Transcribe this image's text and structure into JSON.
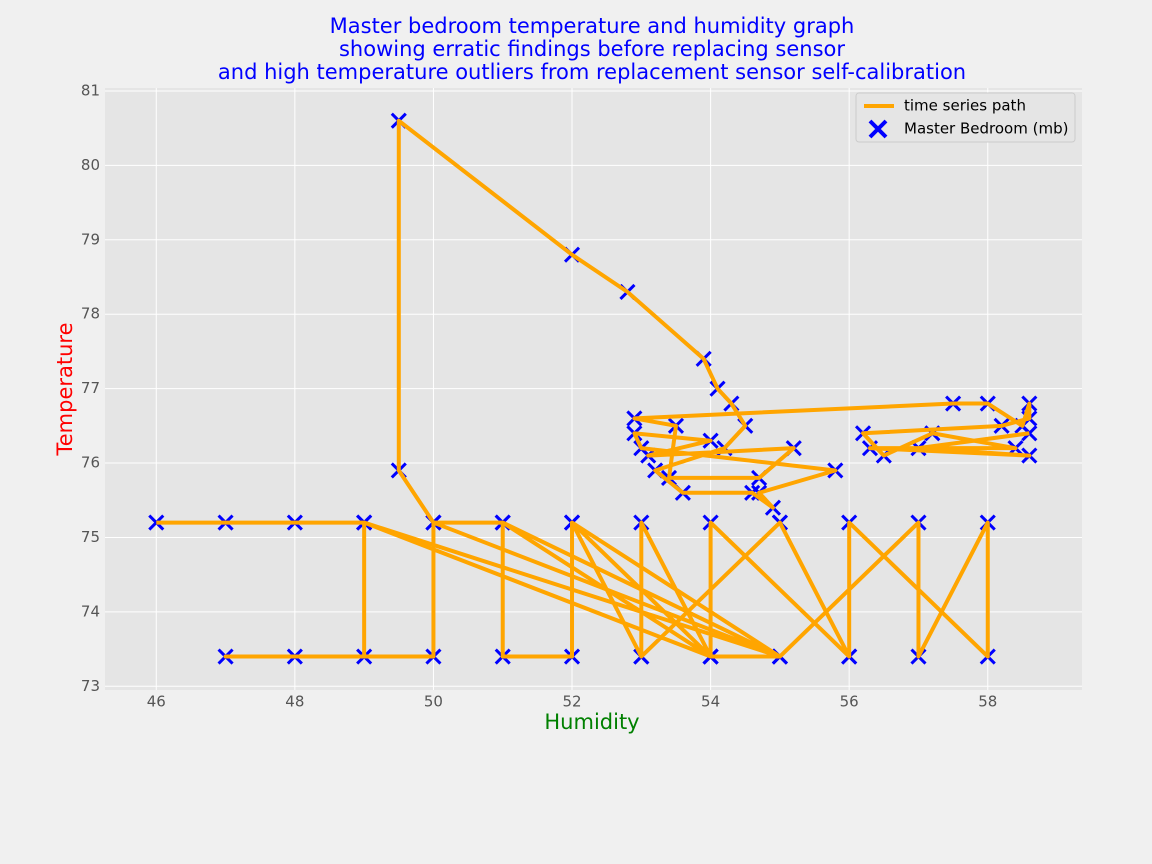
{
  "chart_data": {
    "type": "scatter",
    "title": [
      "Master bedroom temperature and humidity graph",
      "showing erratic findings before replacing sensor",
      "and high temperature outliers from replacement sensor self-calibration"
    ],
    "x_label": "Humidity",
    "y_label": "Temperature",
    "xlim": [
      45.26,
      59.36
    ],
    "xticks": [
      46,
      48,
      50,
      52,
      54,
      56,
      58
    ],
    "ylim": [
      72.95,
      81.04
    ],
    "yticks": [
      73,
      74,
      75,
      76,
      77,
      78,
      79,
      80,
      81
    ],
    "grid": true,
    "legend": "upper right",
    "series": [
      {
        "name": "time series path",
        "type": "line",
        "color": "#ffa500",
        "x": [
          46,
          47,
          48,
          49,
          49,
          47,
          48,
          50,
          50,
          51,
          51,
          52,
          52,
          54,
          53,
          53,
          55,
          56,
          54,
          54,
          55,
          57,
          57,
          58,
          58,
          56,
          56,
          55,
          53,
          52,
          55,
          51,
          54,
          49,
          55,
          50,
          49.5,
          49.5,
          52,
          52.8,
          53.9,
          54.1,
          54.3,
          54.5,
          54.2,
          53.2,
          53.6,
          54.6,
          54.9,
          54.7,
          55.8,
          53.0,
          52.9,
          54.0,
          53.1,
          55.2,
          54.7,
          53.4,
          53.5,
          52.9,
          57.5,
          58,
          58.5,
          58.6,
          58.6,
          58.2,
          56.2,
          56.5,
          57.2,
          58.4,
          56.3,
          58.6,
          57.0,
          58.6
        ],
        "values": [
          75.2,
          75.2,
          75.2,
          75.2,
          73.4,
          73.4,
          73.4,
          73.4,
          75.2,
          75.2,
          73.4,
          73.4,
          75.2,
          73.4,
          75.2,
          73.4,
          75.2,
          73.4,
          75.2,
          73.4,
          73.4,
          75.2,
          73.4,
          75.2,
          73.4,
          75.2,
          73.4,
          75.2,
          73.4,
          75.2,
          73.4,
          75.2,
          73.4,
          75.2,
          73.4,
          75.2,
          75.9,
          80.6,
          78.8,
          78.3,
          77.4,
          77.0,
          76.8,
          76.5,
          76.2,
          75.9,
          75.6,
          75.6,
          75.4,
          75.6,
          75.9,
          76.2,
          76.4,
          76.3,
          76.1,
          76.2,
          75.8,
          75.8,
          76.5,
          76.6,
          76.8,
          76.8,
          76.5,
          76.8,
          76.6,
          76.5,
          76.4,
          76.1,
          76.4,
          76.2,
          76.2,
          76.1,
          76.2,
          76.4
        ]
      },
      {
        "name": "Master Bedroom (mb)",
        "type": "scatter",
        "color": "#0000ff",
        "x": [
          46,
          47,
          48,
          49,
          49,
          47,
          48,
          50,
          50,
          51,
          51,
          52,
          52,
          54,
          53,
          53,
          55,
          56,
          54,
          54,
          55,
          57,
          57,
          58,
          58,
          56,
          56,
          55,
          53,
          52,
          55,
          51,
          54,
          49,
          55,
          50,
          49.5,
          49.5,
          52,
          52.8,
          53.9,
          54.1,
          54.3,
          54.5,
          54.2,
          53.2,
          53.6,
          54.6,
          54.9,
          54.7,
          55.8,
          53.0,
          52.9,
          54.0,
          53.1,
          55.2,
          54.7,
          53.4,
          53.5,
          52.9,
          57.5,
          58,
          58.5,
          58.6,
          58.6,
          58.2,
          56.2,
          56.5,
          57.2,
          58.4,
          56.3,
          58.6,
          57.0,
          58.6
        ],
        "values": [
          75.2,
          75.2,
          75.2,
          75.2,
          73.4,
          73.4,
          73.4,
          73.4,
          75.2,
          75.2,
          73.4,
          73.4,
          75.2,
          73.4,
          75.2,
          73.4,
          75.2,
          73.4,
          75.2,
          73.4,
          73.4,
          75.2,
          73.4,
          75.2,
          73.4,
          75.2,
          73.4,
          75.2,
          73.4,
          75.2,
          73.4,
          75.2,
          73.4,
          75.2,
          73.4,
          75.2,
          75.9,
          80.6,
          78.8,
          78.3,
          77.4,
          77.0,
          76.8,
          76.5,
          76.2,
          75.9,
          75.6,
          75.6,
          75.4,
          75.6,
          75.9,
          76.2,
          76.4,
          76.3,
          76.1,
          76.2,
          75.8,
          75.8,
          76.5,
          76.6,
          76.8,
          76.8,
          76.5,
          76.8,
          76.6,
          76.5,
          76.4,
          76.1,
          76.4,
          76.2,
          76.2,
          76.1,
          76.2,
          76.4
        ]
      }
    ]
  }
}
